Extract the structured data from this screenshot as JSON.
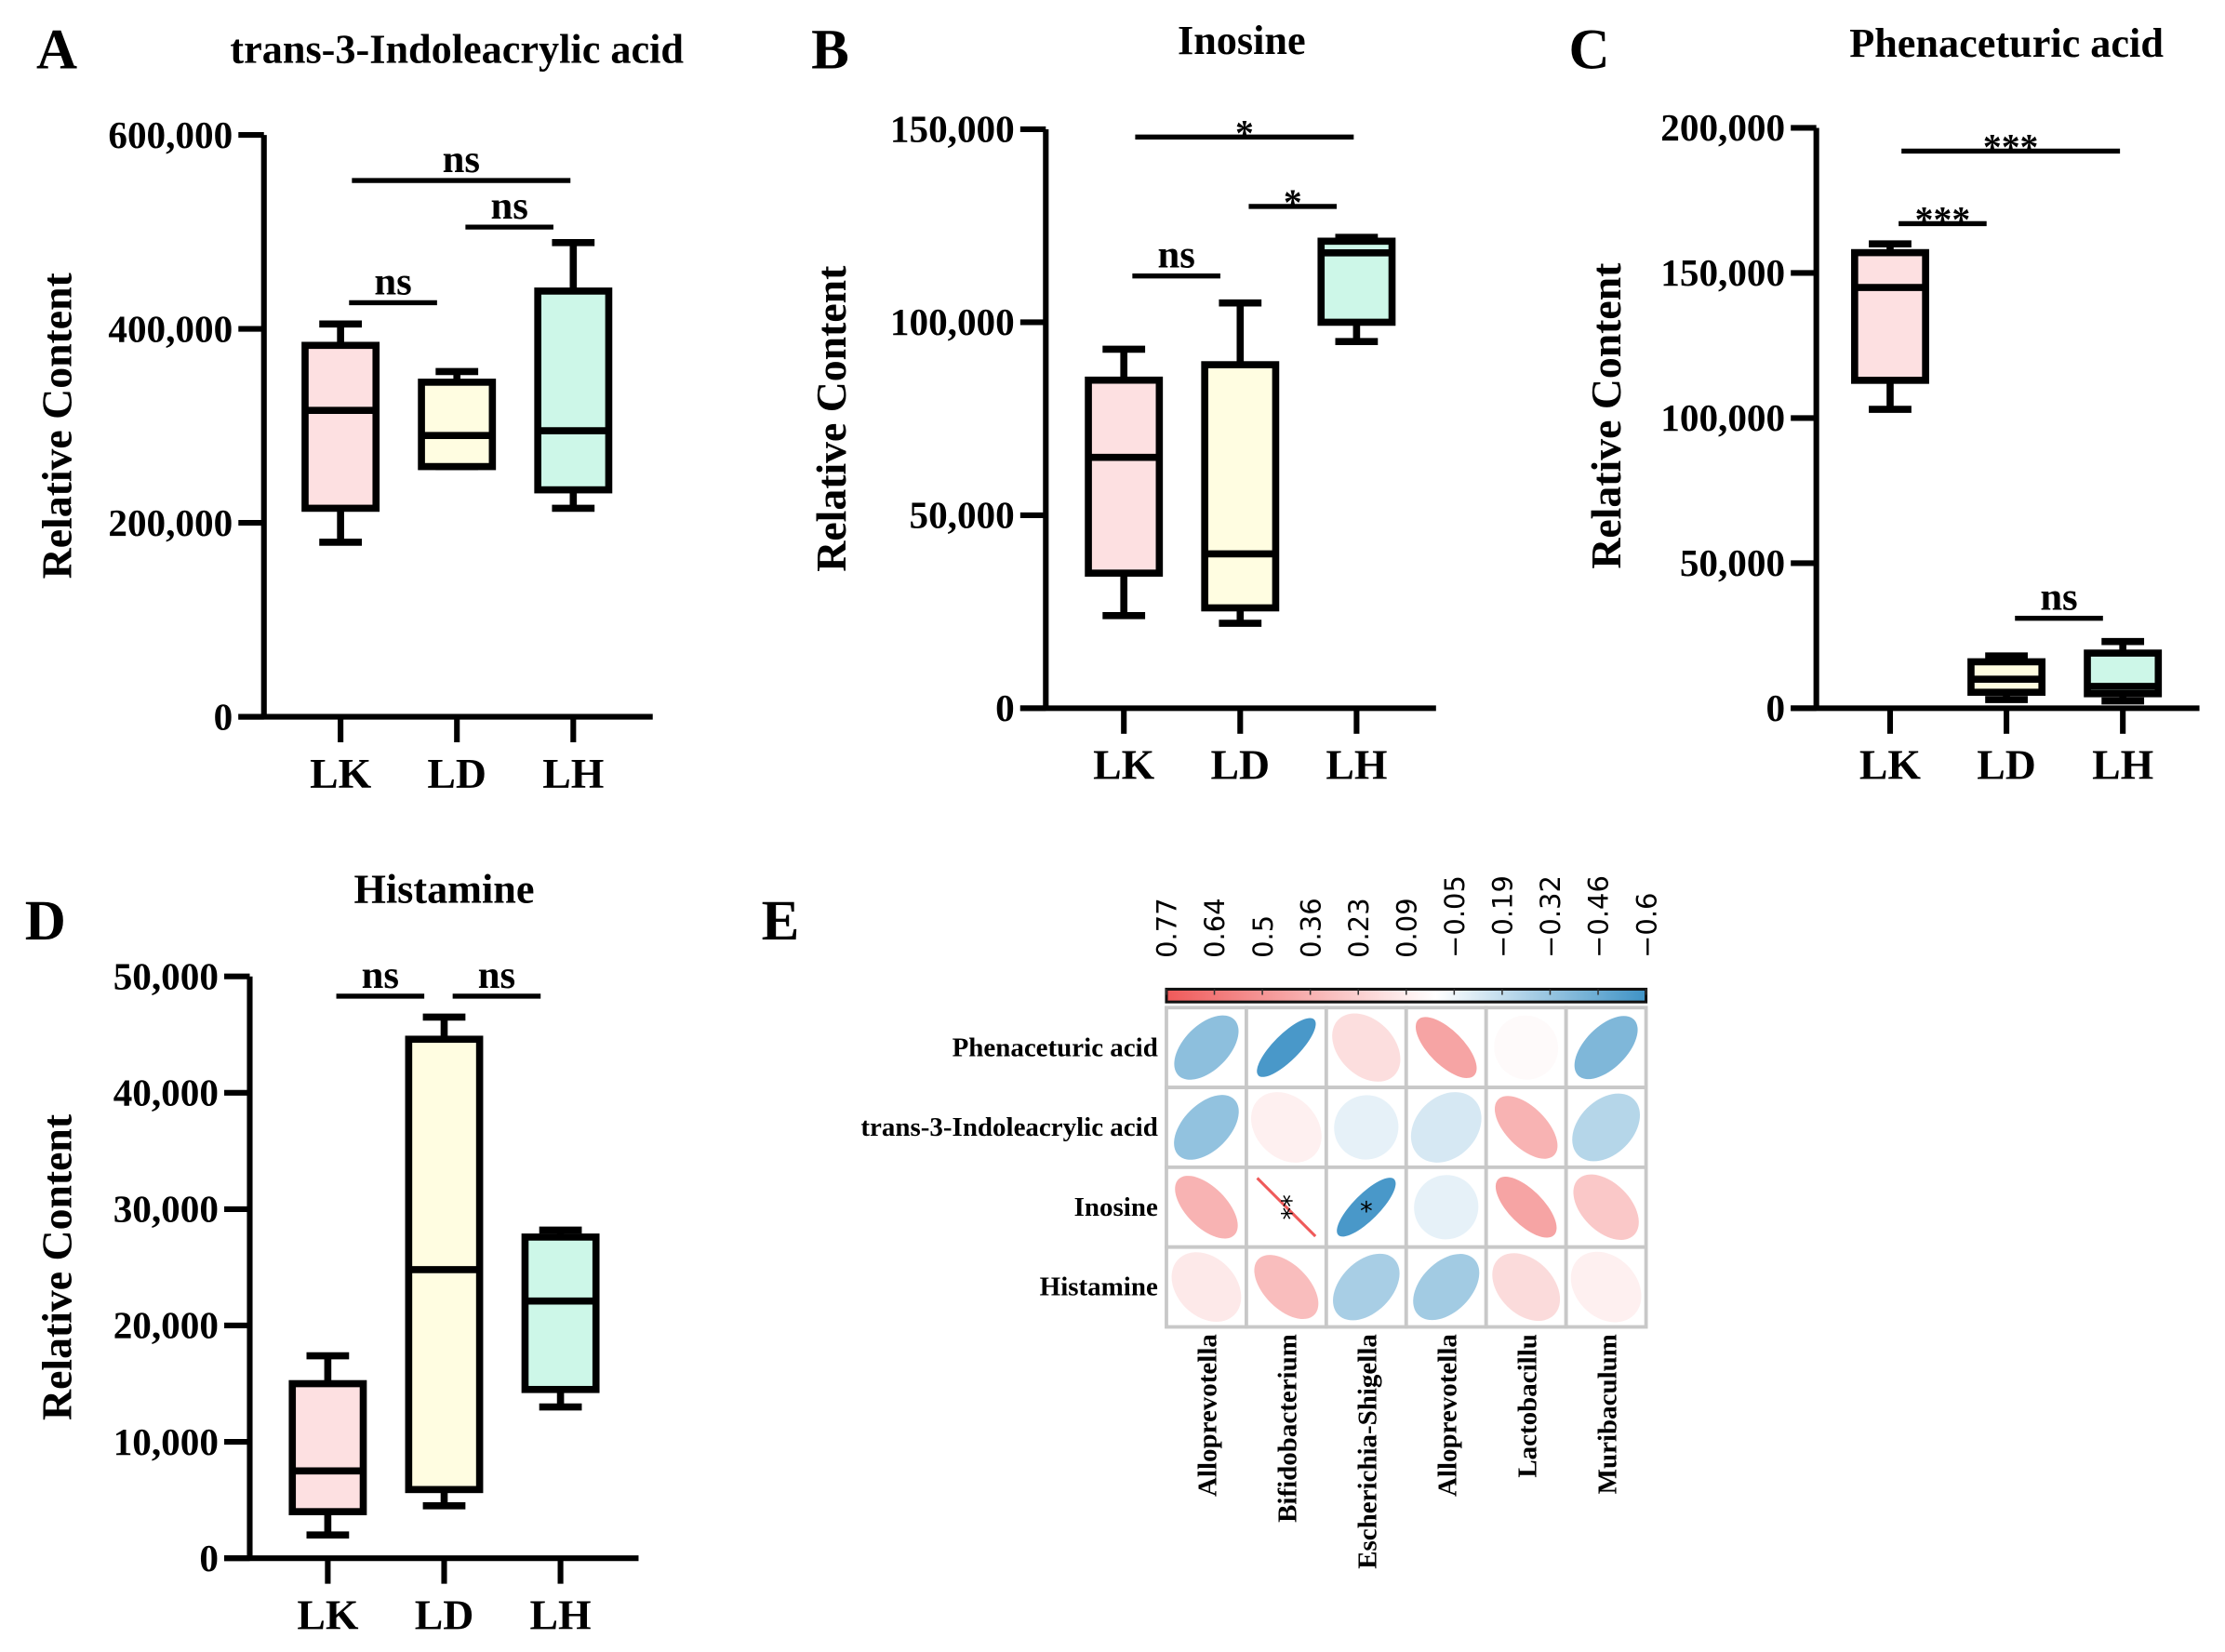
{
  "colors": {
    "LK": "#fde0e1",
    "LD": "#fffde1",
    "LH": "#cdf7e8",
    "stroke": "#000000",
    "neg": "#3f93c6",
    "pos": "#ef5a5a"
  },
  "chart_data": [
    {
      "type": "box",
      "panel": "A",
      "title": "trans-3-Indoleacrylic acid",
      "ylabel": "Relative Content",
      "ylim": [
        0,
        600000
      ],
      "yticks": [
        "0",
        "200,000",
        "400,000",
        "600,000"
      ],
      "ytick_values": [
        0,
        200000,
        400000,
        600000
      ],
      "categories": [
        "LK",
        "LD",
        "LH"
      ],
      "groups": [
        {
          "name": "LK",
          "min": 180000,
          "q1": 215000,
          "median": 316000,
          "q3": 383000,
          "max": 405000
        },
        {
          "name": "LD",
          "min": 258000,
          "q1": 258000,
          "median": 290000,
          "q3": 345000,
          "max": 356000
        },
        {
          "name": "LH",
          "min": 215000,
          "q1": 234000,
          "median": 295000,
          "q3": 439000,
          "max": 489000
        }
      ],
      "significance": [
        {
          "from": "LK",
          "to": "LD",
          "label": "ns",
          "y": 427000
        },
        {
          "from": "LD",
          "to": "LH",
          "label": "ns",
          "y": 505000
        },
        {
          "from": "LK",
          "to": "LH",
          "label": "ns",
          "y": 553000
        }
      ]
    },
    {
      "type": "box",
      "panel": "B",
      "title": "Inosine",
      "ylabel": "Relative Content",
      "ylim": [
        0,
        150000
      ],
      "yticks": [
        "0",
        "50,000",
        "100,000",
        "150,000"
      ],
      "ytick_values": [
        0,
        50000,
        100000,
        150000
      ],
      "categories": [
        "LK",
        "LD",
        "LH"
      ],
      "groups": [
        {
          "name": "LK",
          "min": 24000,
          "q1": 35000,
          "median": 65000,
          "q3": 85000,
          "max": 93000
        },
        {
          "name": "LD",
          "min": 22000,
          "q1": 26000,
          "median": 40000,
          "q3": 89000,
          "max": 105000
        },
        {
          "name": "LH",
          "min": 95000,
          "q1": 100000,
          "median": 118000,
          "q3": 121000,
          "max": 122000
        }
      ],
      "significance": [
        {
          "from": "LK",
          "to": "LD",
          "label": "ns",
          "y": 112000
        },
        {
          "from": "LD",
          "to": "LH",
          "label": "*",
          "y": 130000
        },
        {
          "from": "LK",
          "to": "LH",
          "label": "*",
          "y": 148000
        }
      ]
    },
    {
      "type": "box",
      "panel": "C",
      "title": "Phenaceturic acid",
      "ylabel": "Relative Content",
      "ylim": [
        0,
        200000
      ],
      "yticks": [
        "0",
        "50,000",
        "100,000",
        "150,000",
        "200,000"
      ],
      "ytick_values": [
        0,
        50000,
        100000,
        150000,
        200000
      ],
      "categories": [
        "LK",
        "LD",
        "LH"
      ],
      "groups": [
        {
          "name": "LK",
          "min": 103000,
          "q1": 113000,
          "median": 145000,
          "q3": 157000,
          "max": 160000
        },
        {
          "name": "LD",
          "min": 3000,
          "q1": 5500,
          "median": 10000,
          "q3": 16000,
          "max": 18000
        },
        {
          "name": "LH",
          "min": 2500,
          "q1": 5000,
          "median": 7500,
          "q3": 19000,
          "max": 23000
        }
      ],
      "significance": [
        {
          "from": "LK",
          "to": "LD",
          "label": "***",
          "y": 167000
        },
        {
          "from": "LD",
          "to": "LH",
          "label": "ns",
          "y": 31000
        },
        {
          "from": "LK",
          "to": "LH",
          "label": "***",
          "y": 192000
        }
      ]
    },
    {
      "type": "box",
      "panel": "D",
      "title": "Histamine",
      "ylabel": "Relative Content",
      "ylim": [
        0,
        50000
      ],
      "yticks": [
        "0",
        "10,000",
        "20,000",
        "30,000",
        "40,000",
        "50,000"
      ],
      "ytick_values": [
        0,
        10000,
        20000,
        30000,
        40000,
        50000
      ],
      "categories": [
        "LK",
        "LD",
        "LH"
      ],
      "groups": [
        {
          "name": "LK",
          "min": 2000,
          "q1": 4000,
          "median": 7500,
          "q3": 15000,
          "max": 17400
        },
        {
          "name": "LD",
          "min": 4500,
          "q1": 5900,
          "median": 24800,
          "q3": 44600,
          "max": 46500
        },
        {
          "name": "LH",
          "min": 13000,
          "q1": 14500,
          "median": 22100,
          "q3": 27600,
          "max": 28200
        }
      ],
      "significance": [
        {
          "from": "LK",
          "to": "LD",
          "label": "ns",
          "y": 48300
        },
        {
          "from": "LD",
          "to": "LH",
          "label": "ns",
          "y": 48300
        }
      ]
    },
    {
      "type": "heatmap",
      "panel": "E",
      "style": "corrplot-ellipse",
      "rows": [
        "Phenaceturic acid",
        "trans-3-Indoleacrylic acid",
        "Inosine",
        "Histamine"
      ],
      "columns": [
        "Alloprevotella",
        "Bifidobacterium",
        "Escherichia-Shigella",
        "Alloprevotella",
        "Lactobacillu",
        "Muribaculum"
      ],
      "values": [
        [
          -0.35,
          -0.6,
          0.18,
          0.5,
          0.03,
          -0.4
        ],
        [
          -0.33,
          0.08,
          -0.02,
          -0.08,
          0.42,
          -0.2
        ],
        [
          0.42,
          0.77,
          -0.6,
          -0.02,
          0.5,
          0.3
        ],
        [
          0.12,
          0.36,
          -0.25,
          -0.27,
          0.2,
          0.08
        ]
      ],
      "annotations": [
        [
          "",
          "",
          "",
          "",
          "",
          ""
        ],
        [
          "",
          "",
          "",
          "",
          "",
          ""
        ],
        [
          "",
          "**",
          "*",
          "",
          "",
          ""
        ],
        [
          "",
          "",
          "",
          "",
          "",
          ""
        ]
      ],
      "colorbar_ticks": [
        "0.77",
        "0.64",
        "0.5",
        "0.36",
        "0.23",
        "0.09",
        "−0.05",
        "−0.19",
        "−0.32",
        "−0.46",
        "−0.6"
      ],
      "colorbar_range": [
        0.77,
        -0.6
      ]
    }
  ]
}
